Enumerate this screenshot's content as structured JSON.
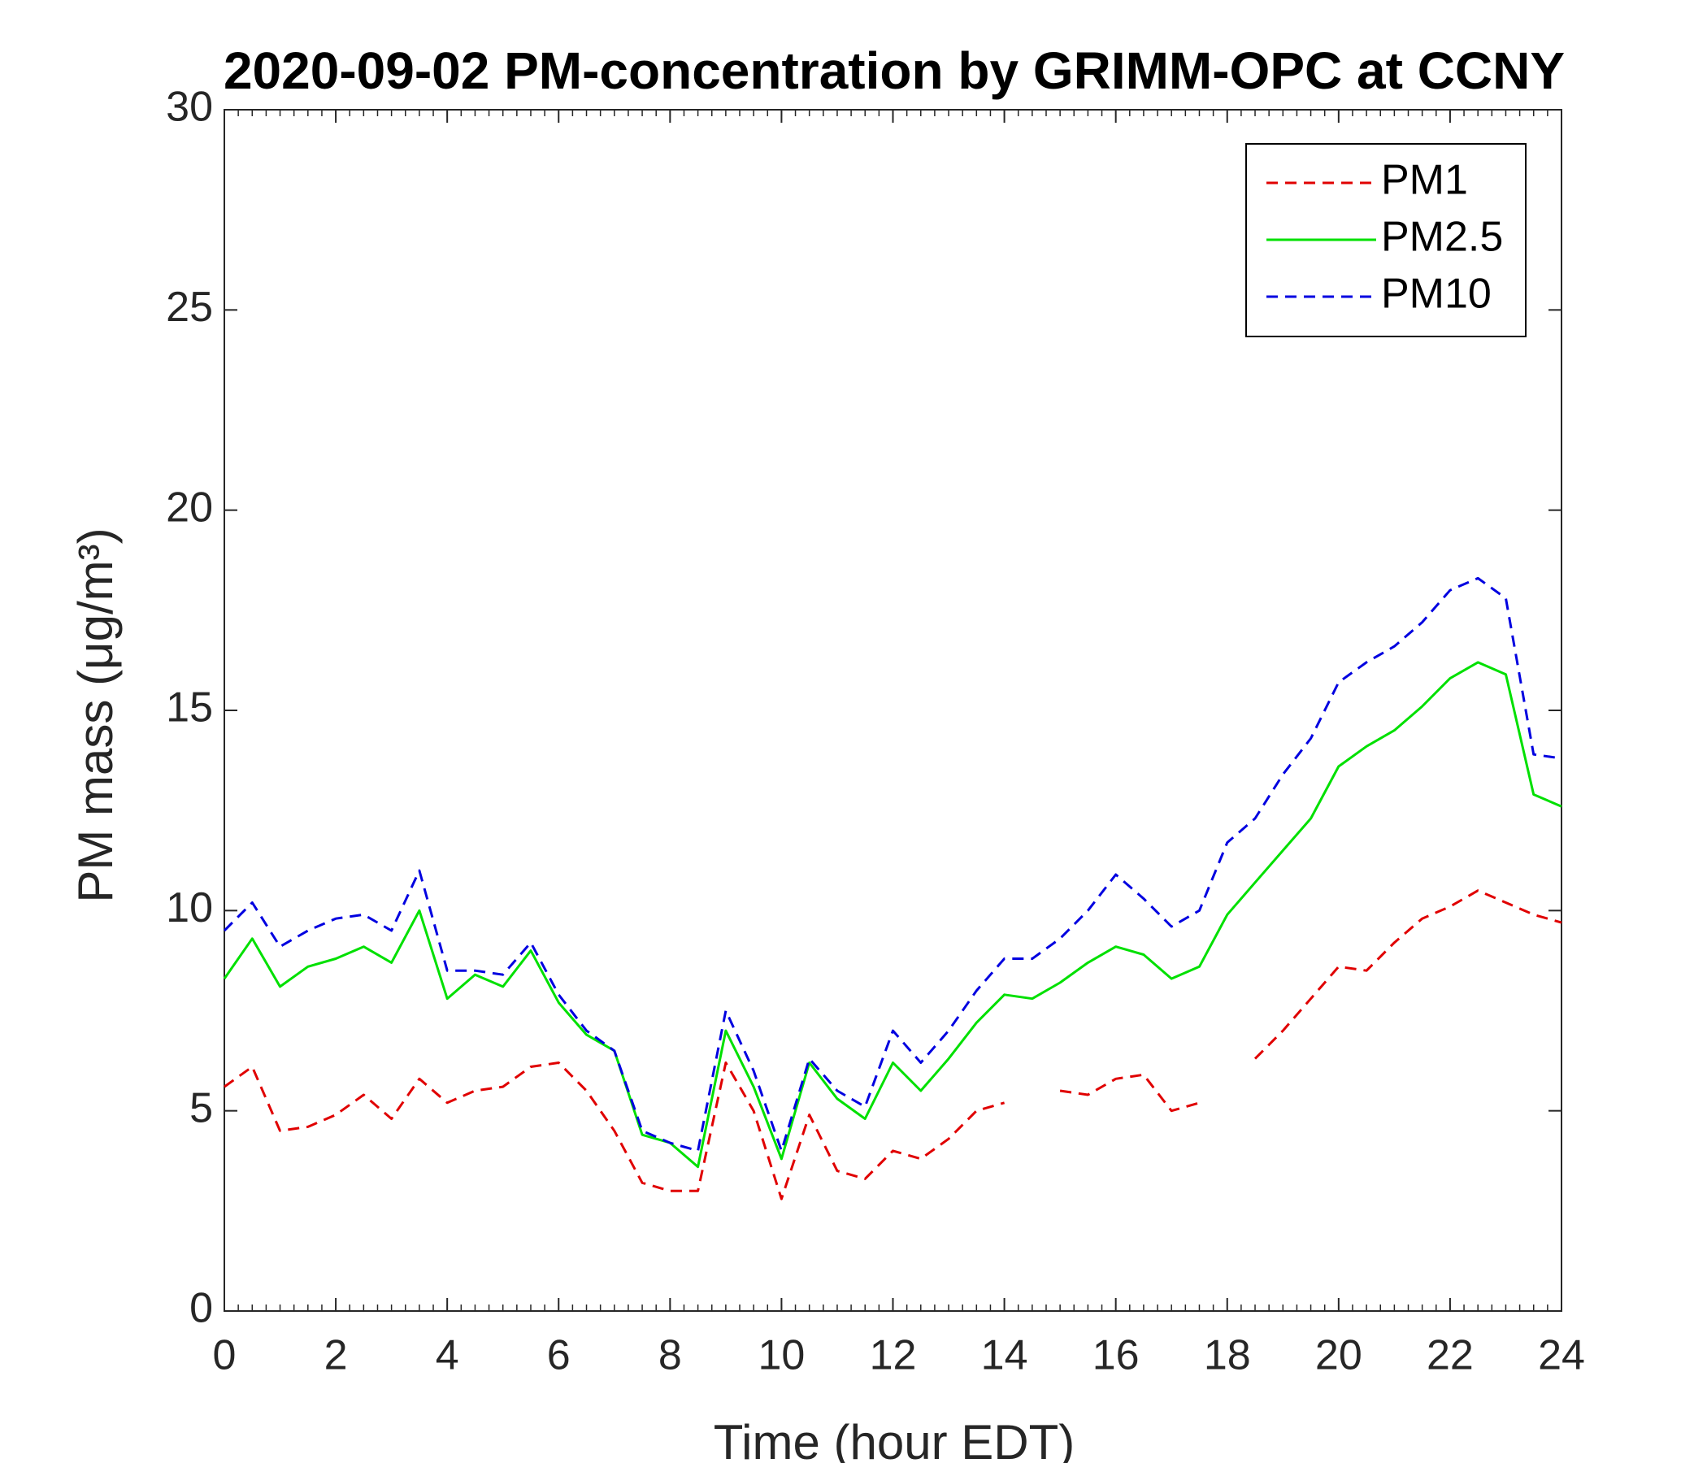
{
  "chart_data": {
    "type": "line",
    "title": "2020-09-02 PM-concentration by GRIMM-OPC at CCNY",
    "x_label": "Time (hour EDT)",
    "y_label": "PM mass (μg/m³)",
    "x": [
      0,
      0.5,
      1,
      1.5,
      2,
      2.5,
      3,
      3.5,
      4,
      4.5,
      5,
      5.5,
      6,
      6.5,
      7,
      7.5,
      8,
      8.5,
      9,
      9.5,
      10,
      10.5,
      11,
      11.5,
      12,
      12.5,
      13,
      13.5,
      14,
      14.5,
      15,
      15.5,
      16,
      16.5,
      17,
      17.5,
      18,
      18.5,
      19,
      19.5,
      20,
      20.5,
      21,
      21.5,
      22,
      22.5,
      23,
      23.5,
      24
    ],
    "series": [
      {
        "name": "PM1",
        "color": "#e00000",
        "style": "dashed",
        "values": [
          5.6,
          6.1,
          4.5,
          4.6,
          4.9,
          5.4,
          4.8,
          5.8,
          5.2,
          5.5,
          5.6,
          6.1,
          6.2,
          5.5,
          4.5,
          3.2,
          3.0,
          3.0,
          6.2,
          5.0,
          2.8,
          4.9,
          3.5,
          3.3,
          4.0,
          3.8,
          4.3,
          5.0,
          5.2,
          null,
          5.5,
          5.4,
          5.8,
          5.9,
          5.0,
          5.2,
          null,
          6.3,
          7.0,
          7.8,
          8.6,
          8.5,
          9.2,
          9.8,
          10.1,
          10.5,
          10.2,
          9.9,
          9.7
        ]
      },
      {
        "name": "PM2.5",
        "color": "#00e000",
        "style": "solid",
        "values": [
          8.3,
          9.3,
          8.1,
          8.6,
          8.8,
          9.1,
          8.7,
          10.0,
          7.8,
          8.4,
          8.1,
          9.0,
          7.7,
          6.9,
          6.5,
          4.4,
          4.2,
          3.6,
          7.0,
          5.6,
          3.8,
          6.2,
          5.3,
          4.8,
          6.2,
          5.5,
          6.3,
          7.2,
          7.9,
          7.8,
          8.2,
          8.7,
          9.1,
          8.9,
          8.3,
          8.6,
          9.9,
          10.7,
          11.5,
          12.3,
          13.6,
          14.1,
          14.5,
          15.1,
          15.8,
          16.2,
          15.9,
          12.9,
          12.6
        ]
      },
      {
        "name": "PM10",
        "color": "#0000e0",
        "style": "dashed",
        "values": [
          9.5,
          10.2,
          9.1,
          9.5,
          9.8,
          9.9,
          9.5,
          11.0,
          8.5,
          8.5,
          8.4,
          9.2,
          7.9,
          7.0,
          6.5,
          4.5,
          4.2,
          4.0,
          7.5,
          6.0,
          4.0,
          6.3,
          5.5,
          5.1,
          7.0,
          6.2,
          7.0,
          8.0,
          8.8,
          8.8,
          9.3,
          10.0,
          10.9,
          10.3,
          9.6,
          10.0,
          11.7,
          12.3,
          13.4,
          14.3,
          15.7,
          16.2,
          16.6,
          17.2,
          18.0,
          18.3,
          17.8,
          13.9,
          13.8
        ]
      }
    ],
    "xlim": [
      0,
      24
    ],
    "xticks": [
      0,
      2,
      4,
      6,
      8,
      10,
      12,
      14,
      16,
      18,
      20,
      22,
      24
    ],
    "ylim": [
      0,
      30
    ],
    "yticks": [
      0,
      5,
      10,
      15,
      20,
      25,
      30
    ],
    "grid": false,
    "legend": "northeast"
  }
}
